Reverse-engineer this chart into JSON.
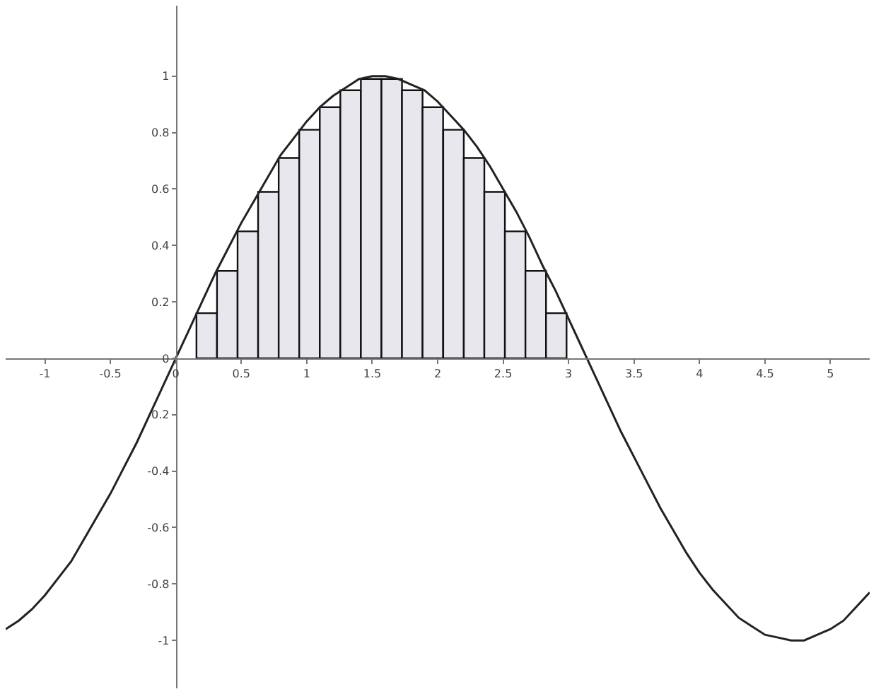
{
  "chart_data": {
    "type": "bar",
    "xlim": [
      -1.3,
      5.3
    ],
    "ylim": [
      -1.17,
      1.25
    ],
    "xticks": [
      -1,
      -0.5,
      0,
      0.5,
      1,
      1.5,
      2,
      2.5,
      3,
      3.5,
      4,
      4.5,
      5
    ],
    "yticks": [
      -1,
      -0.8,
      -0.6,
      -0.4,
      -0.2,
      0,
      0.2,
      0.4,
      0.6,
      0.8,
      1
    ],
    "grid": false,
    "marker": "none",
    "series": [
      {
        "color": "#e9e7ee",
        "x": [
          0.236,
          0.393,
          0.55,
          0.707,
          0.864,
          1.021,
          1.178,
          1.335,
          1.492,
          1.649,
          1.806,
          1.963,
          2.121,
          2.278,
          2.435,
          2.592,
          2.749,
          2.906
        ],
        "values": [
          0.16,
          0.31,
          0.45,
          0.59,
          0.71,
          0.81,
          0.89,
          0.95,
          0.99,
          0.99,
          0.95,
          0.89,
          0.81,
          0.71,
          0.59,
          0.45,
          0.31,
          0.16
        ]
      },
      {
        "type": "line",
        "color": "#222222",
        "line_style": "solid",
        "x": [
          -1.3,
          -1.2,
          -1.1,
          -1.0,
          -0.9,
          -0.8,
          -0.7,
          -0.6,
          -0.5,
          -0.4,
          -0.3,
          -0.2,
          -0.1,
          0,
          0.1,
          0.2,
          0.3,
          0.4,
          0.5,
          0.6,
          0.7,
          0.8,
          0.9,
          1.0,
          1.1,
          1.2,
          1.3,
          1.4,
          1.5,
          1.6,
          1.7,
          1.8,
          1.9,
          2.0,
          2.1,
          2.2,
          2.3,
          2.4,
          2.5,
          2.6,
          2.7,
          2.8,
          2.9,
          3.0,
          3.1,
          3.2,
          3.3,
          3.4,
          3.5,
          3.6,
          3.7,
          3.8,
          3.9,
          4.0,
          4.1,
          4.2,
          4.3,
          4.4,
          4.5,
          4.6,
          4.7,
          4.8,
          4.9,
          5.0,
          5.1,
          5.2,
          5.3
        ],
        "values": [
          -0.96,
          -0.93,
          -0.89,
          -0.84,
          -0.78,
          -0.72,
          -0.64,
          -0.56,
          -0.48,
          -0.39,
          -0.3,
          -0.2,
          -0.1,
          0,
          0.1,
          0.2,
          0.3,
          0.39,
          0.48,
          0.56,
          0.64,
          0.72,
          0.78,
          0.84,
          0.89,
          0.93,
          0.96,
          0.99,
          1.0,
          1.0,
          0.99,
          0.97,
          0.95,
          0.91,
          0.86,
          0.81,
          0.75,
          0.68,
          0.6,
          0.52,
          0.43,
          0.33,
          0.24,
          0.14,
          0.04,
          -0.06,
          -0.16,
          -0.26,
          -0.35,
          -0.44,
          -0.53,
          -0.61,
          -0.69,
          -0.76,
          -0.82,
          -0.87,
          -0.92,
          -0.95,
          -0.98,
          -0.99,
          -1.0,
          -1.0,
          -0.98,
          -0.96,
          -0.93,
          -0.88,
          -0.83
        ]
      }
    ]
  }
}
